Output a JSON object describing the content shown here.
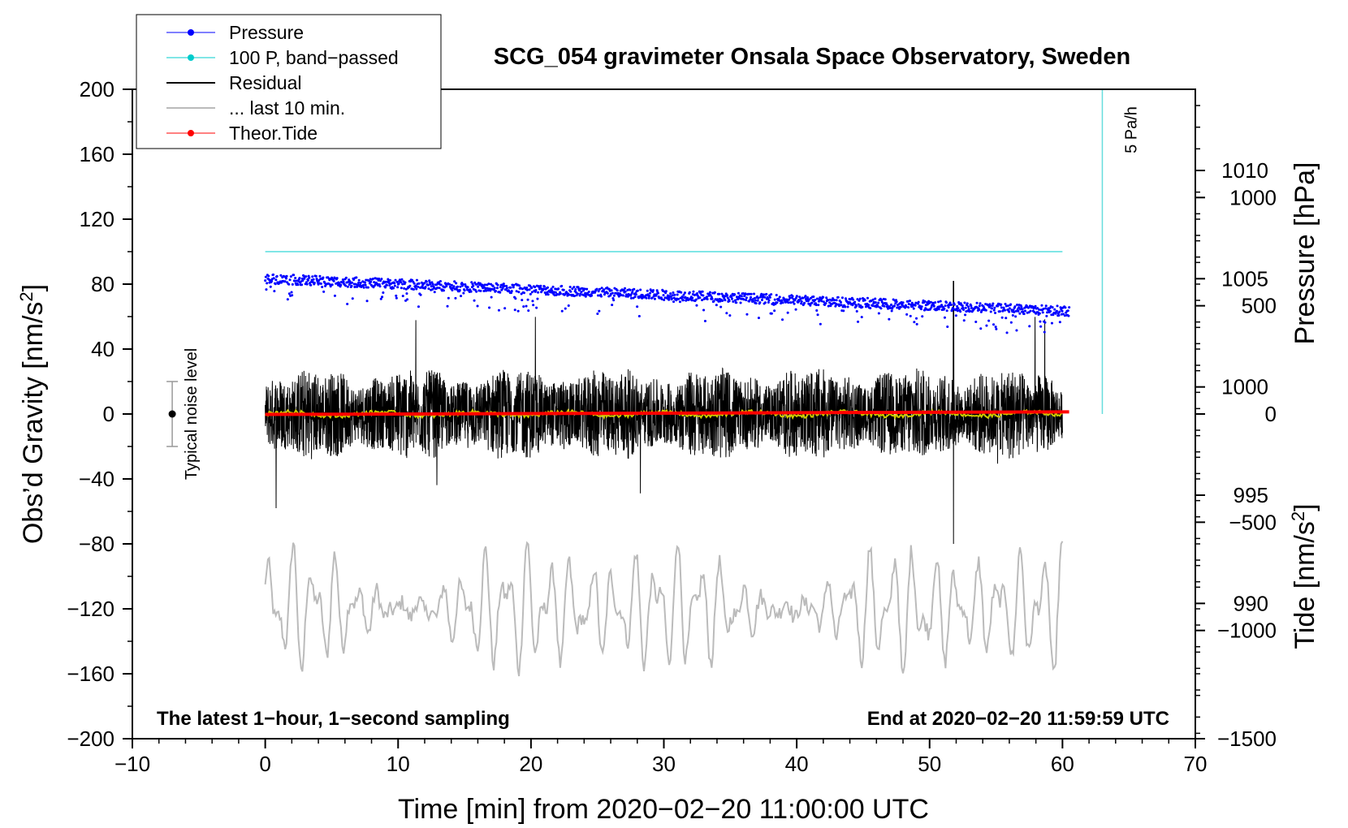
{
  "chart_data": {
    "type": "line",
    "title": "SCG_054 gravimeter Onsala Space Observatory, Sweden",
    "xlabel": "Time [min] from 2020−02−20 11:00:00 UTC",
    "ylabel_main": "Obs’d Gravity [nm/s",
    "ylabel_sup": "2",
    "ylabel_close": "]",
    "ylabel_pressure": "Pressure [hPa]",
    "ylabel_tide_main": "Tide [nm/s",
    "ylabel_tide_sup": "2",
    "ylabel_tide_close": "]",
    "xlim": [
      -10,
      70
    ],
    "ylim": [
      -200,
      200
    ],
    "pressure_lim": [
      983.75,
      1013.75
    ],
    "tide_lim": [
      -1500,
      1500
    ],
    "x_ticks": [
      {
        "v": -10,
        "label": "−10"
      },
      {
        "v": 0,
        "label": "0"
      },
      {
        "v": 10,
        "label": "10"
      },
      {
        "v": 20,
        "label": "20"
      },
      {
        "v": 30,
        "label": "30"
      },
      {
        "v": 40,
        "label": "40"
      },
      {
        "v": 50,
        "label": "50"
      },
      {
        "v": 60,
        "label": "60"
      },
      {
        "v": 70,
        "label": "70"
      }
    ],
    "y_ticks": [
      {
        "v": 200,
        "label": "200"
      },
      {
        "v": 160,
        "label": "160"
      },
      {
        "v": 120,
        "label": "120"
      },
      {
        "v": 80,
        "label": "80"
      },
      {
        "v": 40,
        "label": "40"
      },
      {
        "v": 0,
        "label": "0"
      },
      {
        "v": -40,
        "label": "−40"
      },
      {
        "v": -80,
        "label": "−80"
      },
      {
        "v": -120,
        "label": "−120"
      },
      {
        "v": -160,
        "label": "−160"
      },
      {
        "v": -200,
        "label": "−200"
      }
    ],
    "pressure_ticks": [
      {
        "v": 1010,
        "label": "1010"
      },
      {
        "v": 1005,
        "label": "1005"
      },
      {
        "v": 1000,
        "label": "1000"
      },
      {
        "v": 995,
        "label": "995"
      },
      {
        "v": 990,
        "label": "990"
      }
    ],
    "tide_ticks": [
      {
        "v": 1000,
        "label": "1000"
      },
      {
        "v": 500,
        "label": "500"
      },
      {
        "v": 0,
        "label": "0"
      },
      {
        "v": -500,
        "label": "−500"
      },
      {
        "v": -1000,
        "label": "−1000"
      },
      {
        "v": -1500,
        "label": "−1500"
      }
    ],
    "legend": [
      {
        "name": "Pressure",
        "color": "#0000ff",
        "marker": true,
        "lw": 1
      },
      {
        "name": "100 P, band−passed",
        "color": "#00cccc",
        "marker": true,
        "lw": 1
      },
      {
        "name": "Residual",
        "color": "#000000",
        "marker": false,
        "lw": 2
      },
      {
        "name": "... last 10 min.",
        "color": "#bbbbbb",
        "marker": false,
        "lw": 2
      },
      {
        "name": "Theor.Tide",
        "color": "#ff0000",
        "marker": true,
        "lw": 1
      }
    ],
    "series": [
      {
        "name": "Pressure",
        "axis": "pressure",
        "color": "#0000ff",
        "start": 1005.0,
        "end": 1003.5,
        "scatter": 0.6
      },
      {
        "name": "100 P, band−passed",
        "axis": "gravity",
        "color": "#00cccc",
        "values_const": 100,
        "x_range": [
          0,
          60
        ]
      },
      {
        "name": "Residual",
        "axis": "gravity",
        "color": "#000000",
        "x_range": [
          0,
          60
        ],
        "typical_amplitude": 25,
        "max": 82,
        "min": -80
      },
      {
        "name": "... last 10 min.",
        "axis": "gravity",
        "color": "#bbbbbb",
        "baseline": -120,
        "amplitude": 30,
        "x_range": [
          0,
          60
        ]
      },
      {
        "name": "Theor.Tide",
        "axis": "tide",
        "color": "#ff0000",
        "x": [
          0,
          60.5
        ],
        "values": [
          -2,
          10
        ]
      },
      {
        "name": "Smoothed residual",
        "axis": "gravity",
        "color": "#cccc00",
        "values_const": 0,
        "x_range": [
          0,
          60
        ]
      }
    ],
    "pressure_rate": {
      "label": "5 Pa/h",
      "x": 63,
      "y_from": 0,
      "y_to": 200,
      "color": "#66dddd"
    },
    "noise_marker": {
      "label": "Typical noise level",
      "x": -7,
      "center": 0,
      "low": -20,
      "high": 20
    },
    "annotations": {
      "left": "The latest 1−hour, 1−second sampling",
      "right": "End at 2020−02−20 11:59:59 UTC"
    }
  }
}
